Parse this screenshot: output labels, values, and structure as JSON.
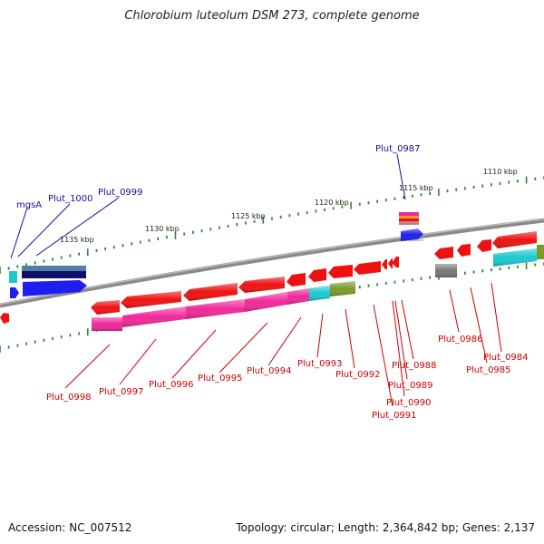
{
  "title": "Chlorobium luteolum DSM 273, complete genome",
  "footer": {
    "accession": "Accession: NC_007512",
    "summary": "Topology: circular; Length: 2,364,842 bp; Genes: 2,137"
  },
  "colors": {
    "backbone": "#8a8a8a",
    "tick": "#2e8b2e",
    "label_top": "#1010a0",
    "label_bottom": "#cc0000",
    "gene_red": "#ee1111",
    "gene_pink": "#f0289a",
    "gene_cyan": "#19c9cf",
    "gene_olive": "#7a9a2a",
    "gene_blue": "#1e1ef0",
    "gene_navy": "#10106a",
    "gene_steel": "#4f7fa8",
    "gene_gray": "#777777",
    "gene_orange": "#ff9a20"
  },
  "ruler": [
    "1135 kbp",
    "1130 kbp",
    "1125 kbp",
    "1120 kbp",
    "1115 kbp",
    "1110 kbp"
  ],
  "labels_top": [
    "mgsA",
    "Plut_1000",
    "Plut_0999",
    "Plut_0987"
  ],
  "labels_bottom": [
    "Plut_0998",
    "Plut_0997",
    "Plut_0996",
    "Plut_0995",
    "Plut_0994",
    "Plut_0993",
    "Plut_0992",
    "Plut_0988",
    "Plut_0989",
    "Plut_0990",
    "Plut_0991",
    "Plut_0986",
    "Plut_0984",
    "Plut_0985"
  ]
}
